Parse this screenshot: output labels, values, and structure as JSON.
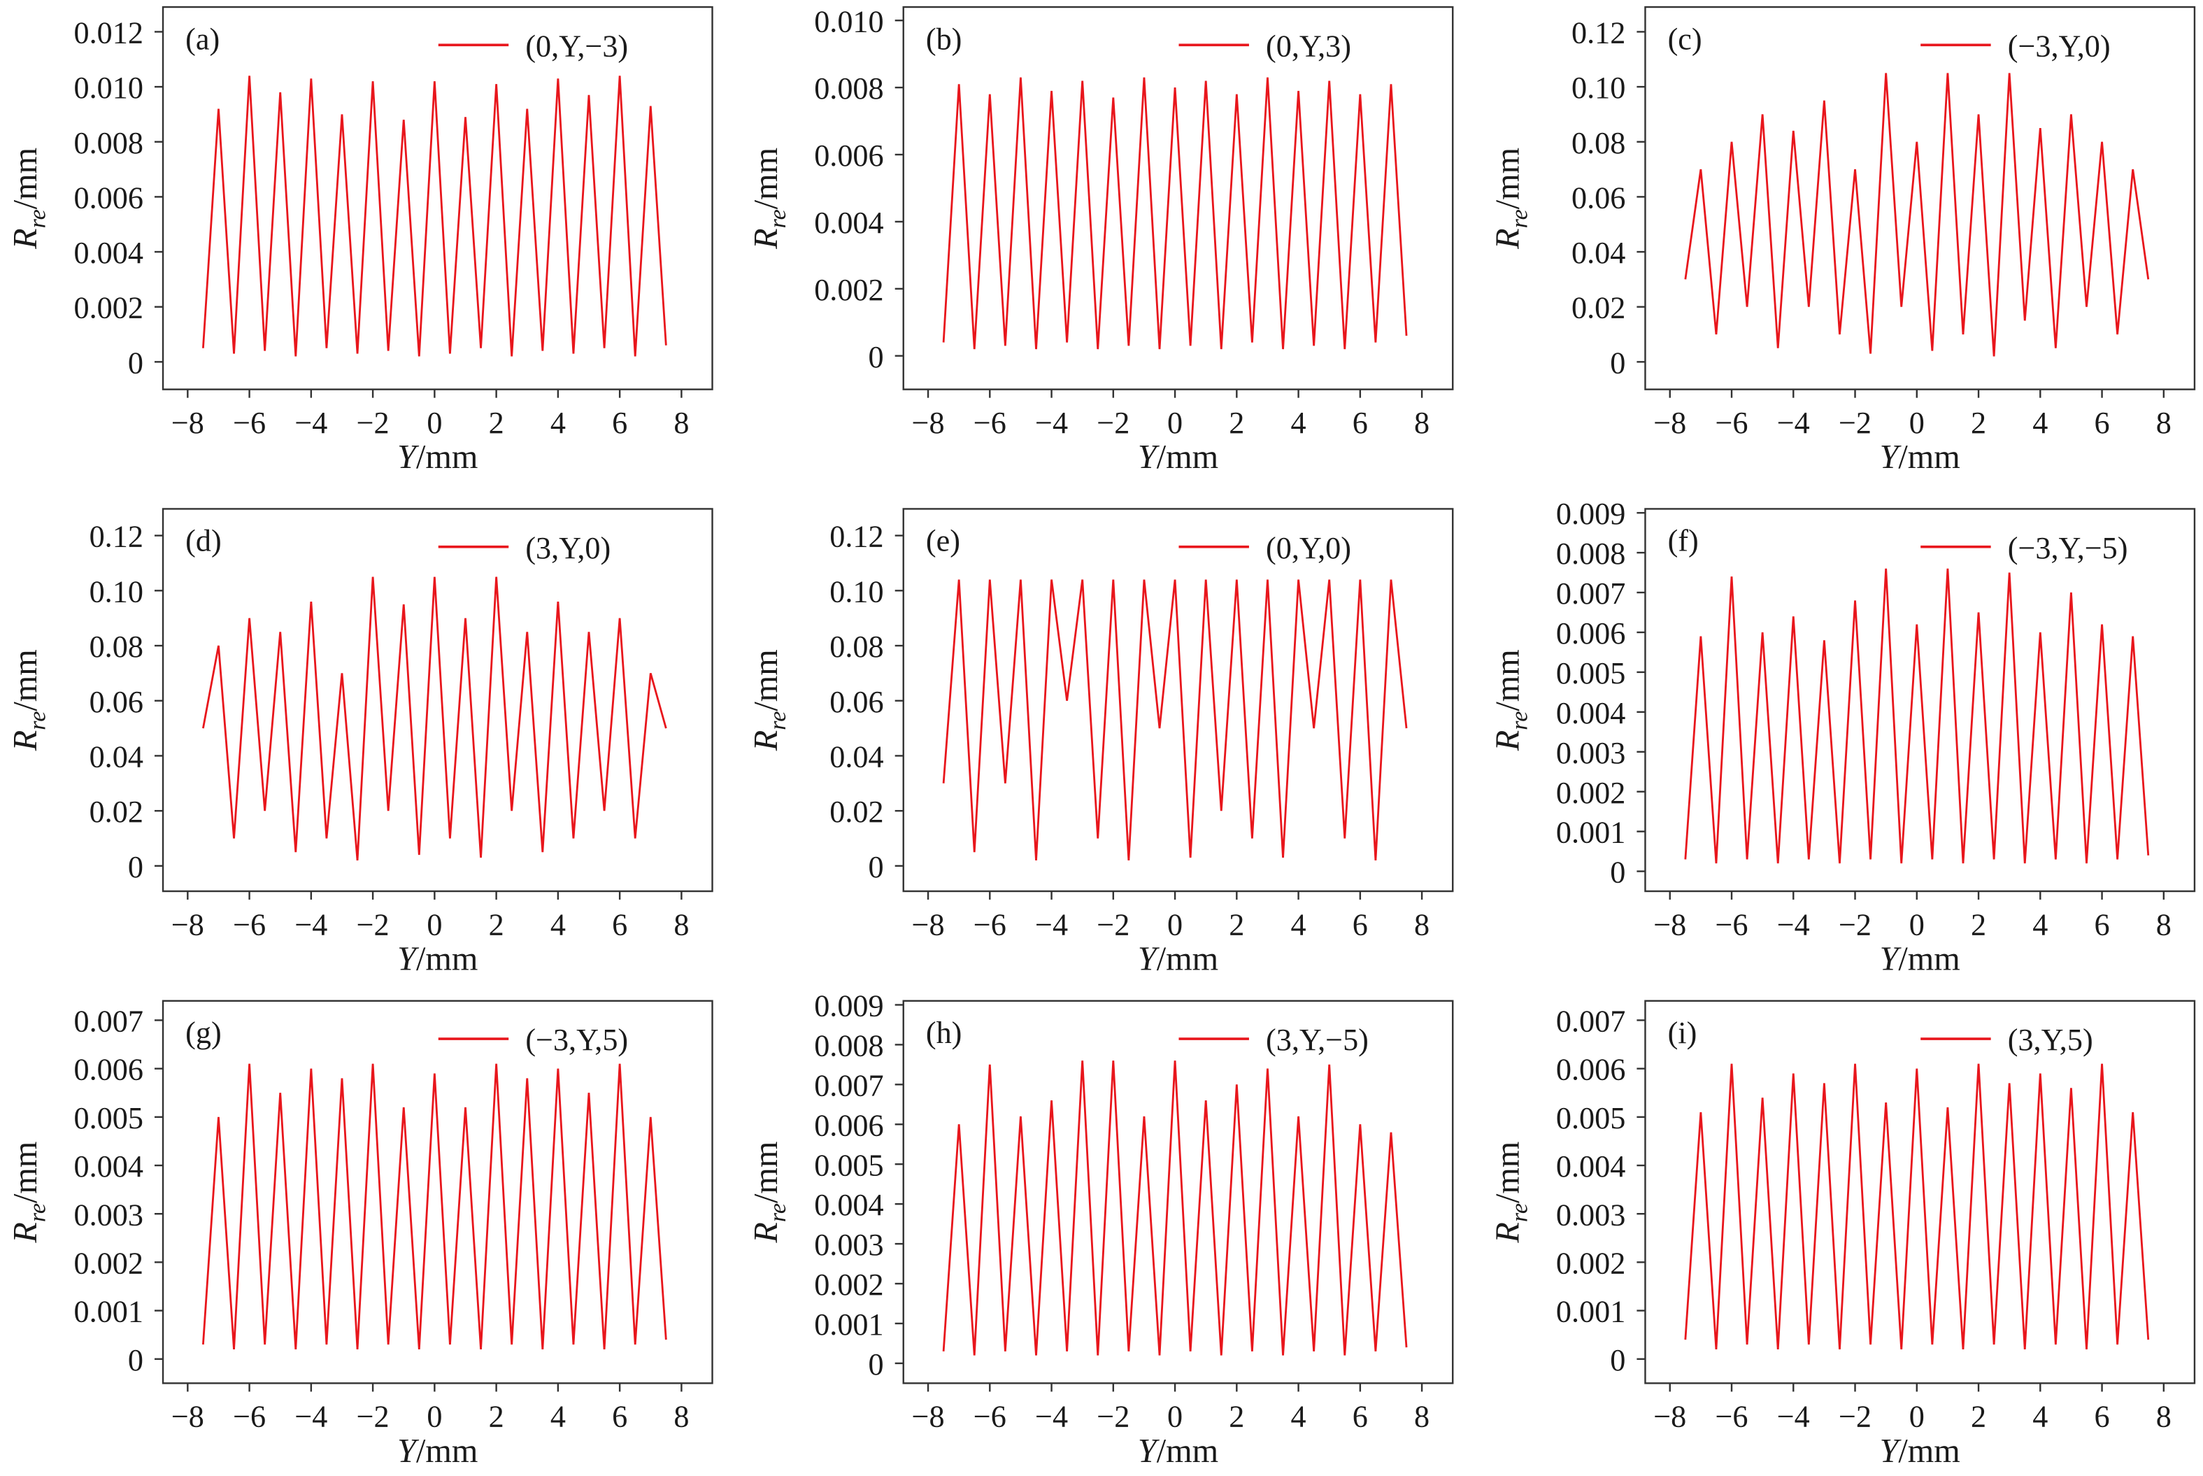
{
  "chart_data": [
    {
      "type": "line",
      "panel_label": "(a)",
      "legend": "upper right",
      "x": [
        -7.5,
        -7,
        -6.5,
        -6,
        -5.5,
        -5,
        -4.5,
        -4,
        -3.5,
        -3,
        -2.5,
        -2,
        -1.5,
        -1,
        -0.5,
        0,
        0.5,
        1,
        1.5,
        2,
        2.5,
        3,
        3.5,
        4,
        4.5,
        5,
        5.5,
        6,
        6.5,
        7,
        7.5
      ],
      "series": [
        {
          "name": "(0,Y,−3)",
          "color": "#e8161c",
          "values": [
            0.0005,
            0.0092,
            0.0003,
            0.0104,
            0.0004,
            0.0098,
            0.0002,
            0.0103,
            0.0005,
            0.009,
            0.0003,
            0.0102,
            0.0004,
            0.0088,
            0.0002,
            0.0102,
            0.0003,
            0.0089,
            0.0005,
            0.0101,
            0.0002,
            0.0092,
            0.0004,
            0.0103,
            0.0003,
            0.0097,
            0.0005,
            0.0104,
            0.0002,
            0.0093,
            0.0006
          ]
        }
      ],
      "xlim": [
        -8.8,
        9
      ],
      "ylim": [
        -0.001,
        0.0129
      ],
      "xticks": [
        {
          "value": -8,
          "label": "−8"
        },
        {
          "value": -6,
          "label": "−6"
        },
        {
          "value": -4,
          "label": "−4"
        },
        {
          "value": -2,
          "label": "−2"
        },
        0,
        2,
        4,
        6,
        8
      ],
      "yticks": [
        0,
        0.002,
        0.004,
        0.006,
        0.008,
        {
          "value": 0.01,
          "label": "0.010"
        },
        0.012
      ],
      "x_label": {
        "symbol": "Y",
        "unit": "/mm"
      },
      "y_label": {
        "symbol": "R",
        "subscript": "re",
        "unit": "/mm"
      }
    },
    {
      "type": "line",
      "panel_label": "(b)",
      "legend": "upper right",
      "x": [
        -7.5,
        -7,
        -6.5,
        -6,
        -5.5,
        -5,
        -4.5,
        -4,
        -3.5,
        -3,
        -2.5,
        -2,
        -1.5,
        -1,
        -0.5,
        0,
        0.5,
        1,
        1.5,
        2,
        2.5,
        3,
        3.5,
        4,
        4.5,
        5,
        5.5,
        6,
        6.5,
        7,
        7.5
      ],
      "series": [
        {
          "name": "(0,Y,3)",
          "color": "#e8161c",
          "values": [
            0.0004,
            0.0081,
            0.0002,
            0.0078,
            0.0003,
            0.0083,
            0.0002,
            0.0079,
            0.0004,
            0.0082,
            0.0002,
            0.0077,
            0.0003,
            0.0083,
            0.0002,
            0.008,
            0.0003,
            0.0082,
            0.0002,
            0.0078,
            0.0004,
            0.0083,
            0.0002,
            0.0079,
            0.0003,
            0.0082,
            0.0002,
            0.0078,
            0.0004,
            0.0081,
            0.0006
          ]
        }
      ],
      "xlim": [
        -8.8,
        9
      ],
      "ylim": [
        -0.001,
        0.0104
      ],
      "xticks": [
        {
          "value": -8,
          "label": "−8"
        },
        {
          "value": -6,
          "label": "−6"
        },
        {
          "value": -4,
          "label": "−4"
        },
        {
          "value": -2,
          "label": "−2"
        },
        0,
        2,
        4,
        6,
        8
      ],
      "yticks": [
        0,
        0.002,
        0.004,
        0.006,
        0.008,
        {
          "value": 0.01,
          "label": "0.010"
        }
      ],
      "x_label": {
        "symbol": "Y",
        "unit": "/mm"
      },
      "y_label": {
        "symbol": "R",
        "subscript": "re",
        "unit": "/mm"
      }
    },
    {
      "type": "line",
      "panel_label": "(c)",
      "legend": "upper right",
      "x": [
        -7.5,
        -7,
        -6.5,
        -6,
        -5.5,
        -5,
        -4.5,
        -4,
        -3.5,
        -3,
        -2.5,
        -2,
        -1.5,
        -1,
        -0.5,
        0,
        0.5,
        1,
        1.5,
        2,
        2.5,
        3,
        3.5,
        4,
        4.5,
        5,
        5.5,
        6,
        6.5,
        7,
        7.5
      ],
      "series": [
        {
          "name": "(−3,Y,0)",
          "color": "#e8161c",
          "values": [
            0.03,
            0.07,
            0.01,
            0.08,
            0.02,
            0.09,
            0.005,
            0.084,
            0.02,
            0.095,
            0.01,
            0.07,
            0.003,
            0.105,
            0.02,
            0.08,
            0.004,
            0.105,
            0.01,
            0.09,
            0.002,
            0.105,
            0.015,
            0.085,
            0.005,
            0.09,
            0.02,
            0.08,
            0.01,
            0.07,
            0.03
          ]
        }
      ],
      "xlim": [
        -8.8,
        9
      ],
      "ylim": [
        -0.01,
        0.129
      ],
      "xticks": [
        {
          "value": -8,
          "label": "−8"
        },
        {
          "value": -6,
          "label": "−6"
        },
        {
          "value": -4,
          "label": "−4"
        },
        {
          "value": -2,
          "label": "−2"
        },
        0,
        2,
        4,
        6,
        8
      ],
      "yticks": [
        0,
        0.02,
        0.04,
        0.06,
        0.08,
        {
          "value": 0.1,
          "label": "0.10"
        },
        0.12
      ],
      "x_label": {
        "symbol": "Y",
        "unit": "/mm"
      },
      "y_label": {
        "symbol": "R",
        "subscript": "re",
        "unit": "/mm"
      }
    },
    {
      "type": "line",
      "panel_label": "(d)",
      "legend": "upper right",
      "x": [
        -7.5,
        -7,
        -6.5,
        -6,
        -5.5,
        -5,
        -4.5,
        -4,
        -3.5,
        -3,
        -2.5,
        -2,
        -1.5,
        -1,
        -0.5,
        0,
        0.5,
        1,
        1.5,
        2,
        2.5,
        3,
        3.5,
        4,
        4.5,
        5,
        5.5,
        6,
        6.5,
        7,
        7.5
      ],
      "series": [
        {
          "name": "(3,Y,0)",
          "color": "#e8161c",
          "values": [
            0.05,
            0.08,
            0.01,
            0.09,
            0.02,
            0.085,
            0.005,
            0.096,
            0.01,
            0.07,
            0.002,
            0.105,
            0.02,
            0.095,
            0.004,
            0.105,
            0.01,
            0.09,
            0.003,
            0.105,
            0.02,
            0.085,
            0.005,
            0.096,
            0.01,
            0.085,
            0.02,
            0.09,
            0.01,
            0.07,
            0.05
          ]
        }
      ],
      "xlim": [
        -8.8,
        9
      ],
      "ylim": [
        -0.0092,
        0.1297
      ],
      "xticks": [
        {
          "value": -8,
          "label": "−8"
        },
        {
          "value": -6,
          "label": "−6"
        },
        {
          "value": -4,
          "label": "−4"
        },
        {
          "value": -2,
          "label": "−2"
        },
        0,
        2,
        4,
        6,
        8
      ],
      "yticks": [
        0,
        0.02,
        0.04,
        0.06,
        0.08,
        {
          "value": 0.1,
          "label": "0.10"
        },
        0.12
      ],
      "x_label": {
        "symbol": "Y",
        "unit": "/mm"
      },
      "y_label": {
        "symbol": "R",
        "subscript": "re",
        "unit": "/mm"
      }
    },
    {
      "type": "line",
      "panel_label": "(e)",
      "legend": "upper right",
      "x": [
        -7.5,
        -7,
        -6.5,
        -6,
        -5.5,
        -5,
        -4.5,
        -4,
        -3.5,
        -3,
        -2.5,
        -2,
        -1.5,
        -1,
        -0.5,
        0,
        0.5,
        1,
        1.5,
        2,
        2.5,
        3,
        3.5,
        4,
        4.5,
        5,
        5.5,
        6,
        6.5,
        7,
        7.5
      ],
      "series": [
        {
          "name": "(0,Y,0)",
          "color": "#e8161c",
          "values": [
            0.03,
            0.104,
            0.005,
            0.104,
            0.03,
            0.104,
            0.002,
            0.104,
            0.06,
            0.104,
            0.01,
            0.104,
            0.002,
            0.104,
            0.05,
            0.104,
            0.003,
            0.104,
            0.02,
            0.104,
            0.01,
            0.104,
            0.003,
            0.104,
            0.05,
            0.104,
            0.01,
            0.104,
            0.002,
            0.104,
            0.05
          ]
        }
      ],
      "xlim": [
        -8.8,
        9
      ],
      "ylim": [
        -0.0092,
        0.1297
      ],
      "xticks": [
        {
          "value": -8,
          "label": "−8"
        },
        {
          "value": -6,
          "label": "−6"
        },
        {
          "value": -4,
          "label": "−4"
        },
        {
          "value": -2,
          "label": "−2"
        },
        0,
        2,
        4,
        6,
        8
      ],
      "yticks": [
        0,
        0.02,
        0.04,
        0.06,
        0.08,
        {
          "value": 0.1,
          "label": "0.10"
        },
        0.12
      ],
      "x_label": {
        "symbol": "Y",
        "unit": "/mm"
      },
      "y_label": {
        "symbol": "R",
        "subscript": "re",
        "unit": "/mm"
      }
    },
    {
      "type": "line",
      "panel_label": "(f)",
      "legend": "upper right",
      "x": [
        -7.5,
        -7,
        -6.5,
        -6,
        -5.5,
        -5,
        -4.5,
        -4,
        -3.5,
        -3,
        -2.5,
        -2,
        -1.5,
        -1,
        -0.5,
        0,
        0.5,
        1,
        1.5,
        2,
        2.5,
        3,
        3.5,
        4,
        4.5,
        5,
        5.5,
        6,
        6.5,
        7,
        7.5
      ],
      "series": [
        {
          "name": "(−3,Y,−5)",
          "color": "#e8161c",
          "values": [
            0.0003,
            0.0059,
            0.0002,
            0.0074,
            0.0003,
            0.006,
            0.0002,
            0.0064,
            0.0003,
            0.0058,
            0.0002,
            0.0068,
            0.0003,
            0.0076,
            0.0002,
            0.0062,
            0.0003,
            0.0076,
            0.0002,
            0.0065,
            0.0003,
            0.0075,
            0.0002,
            0.006,
            0.0003,
            0.007,
            0.0002,
            0.0062,
            0.0003,
            0.0059,
            0.0004
          ]
        }
      ],
      "xlim": [
        -8.8,
        9
      ],
      "ylim": [
        -0.0005,
        0.0091
      ],
      "xticks": [
        {
          "value": -8,
          "label": "−8"
        },
        {
          "value": -6,
          "label": "−6"
        },
        {
          "value": -4,
          "label": "−4"
        },
        {
          "value": -2,
          "label": "−2"
        },
        0,
        2,
        4,
        6,
        8
      ],
      "yticks": [
        0,
        0.001,
        0.002,
        0.003,
        0.004,
        0.005,
        0.006,
        0.007,
        0.008,
        0.009
      ],
      "x_label": {
        "symbol": "Y",
        "unit": "/mm"
      },
      "y_label": {
        "symbol": "R",
        "subscript": "re",
        "unit": "/mm"
      }
    },
    {
      "type": "line",
      "panel_label": "(g)",
      "legend": "upper right",
      "x": [
        -7.5,
        -7,
        -6.5,
        -6,
        -5.5,
        -5,
        -4.5,
        -4,
        -3.5,
        -3,
        -2.5,
        -2,
        -1.5,
        -1,
        -0.5,
        0,
        0.5,
        1,
        1.5,
        2,
        2.5,
        3,
        3.5,
        4,
        4.5,
        5,
        5.5,
        6,
        6.5,
        7,
        7.5
      ],
      "series": [
        {
          "name": "(−3,Y,5)",
          "color": "#e8161c",
          "values": [
            0.0003,
            0.005,
            0.0002,
            0.0061,
            0.0003,
            0.0055,
            0.0002,
            0.006,
            0.0003,
            0.0058,
            0.0002,
            0.0061,
            0.0003,
            0.0052,
            0.0002,
            0.0059,
            0.0003,
            0.0052,
            0.0002,
            0.0061,
            0.0003,
            0.0058,
            0.0002,
            0.006,
            0.0003,
            0.0055,
            0.0002,
            0.0061,
            0.0003,
            0.005,
            0.0004
          ]
        }
      ],
      "xlim": [
        -8.8,
        9
      ],
      "ylim": [
        -0.0005,
        0.0074
      ],
      "xticks": [
        {
          "value": -8,
          "label": "−8"
        },
        {
          "value": -6,
          "label": "−6"
        },
        {
          "value": -4,
          "label": "−4"
        },
        {
          "value": -2,
          "label": "−2"
        },
        0,
        2,
        4,
        6,
        8
      ],
      "yticks": [
        0,
        0.001,
        0.002,
        0.003,
        0.004,
        0.005,
        0.006,
        0.007
      ],
      "x_label": {
        "symbol": "Y",
        "unit": "/mm"
      },
      "y_label": {
        "symbol": "R",
        "subscript": "re",
        "unit": "/mm"
      }
    },
    {
      "type": "line",
      "panel_label": "(h)",
      "legend": "upper right",
      "x": [
        -7.5,
        -7,
        -6.5,
        -6,
        -5.5,
        -5,
        -4.5,
        -4,
        -3.5,
        -3,
        -2.5,
        -2,
        -1.5,
        -1,
        -0.5,
        0,
        0.5,
        1,
        1.5,
        2,
        2.5,
        3,
        3.5,
        4,
        4.5,
        5,
        5.5,
        6,
        6.5,
        7,
        7.5
      ],
      "series": [
        {
          "name": "(3,Y,−5)",
          "color": "#e8161c",
          "values": [
            0.0003,
            0.006,
            0.0002,
            0.0075,
            0.0003,
            0.0062,
            0.0002,
            0.0066,
            0.0003,
            0.0076,
            0.0002,
            0.0076,
            0.0003,
            0.0062,
            0.0002,
            0.0076,
            0.0003,
            0.0066,
            0.0002,
            0.007,
            0.0003,
            0.0074,
            0.0002,
            0.0062,
            0.0003,
            0.0075,
            0.0002,
            0.006,
            0.0003,
            0.0058,
            0.0004
          ]
        }
      ],
      "xlim": [
        -8.8,
        9
      ],
      "ylim": [
        -0.0005,
        0.0091
      ],
      "xticks": [
        {
          "value": -8,
          "label": "−8"
        },
        {
          "value": -6,
          "label": "−6"
        },
        {
          "value": -4,
          "label": "−4"
        },
        {
          "value": -2,
          "label": "−2"
        },
        0,
        2,
        4,
        6,
        8
      ],
      "yticks": [
        0,
        0.001,
        0.002,
        0.003,
        0.004,
        0.005,
        0.006,
        0.007,
        0.008,
        0.009
      ],
      "x_label": {
        "symbol": "Y",
        "unit": "/mm"
      },
      "y_label": {
        "symbol": "R",
        "subscript": "re",
        "unit": "/mm"
      }
    },
    {
      "type": "line",
      "panel_label": "(i)",
      "legend": "upper right",
      "x": [
        -7.5,
        -7,
        -6.5,
        -6,
        -5.5,
        -5,
        -4.5,
        -4,
        -3.5,
        -3,
        -2.5,
        -2,
        -1.5,
        -1,
        -0.5,
        0,
        0.5,
        1,
        1.5,
        2,
        2.5,
        3,
        3.5,
        4,
        4.5,
        5,
        5.5,
        6,
        6.5,
        7,
        7.5
      ],
      "series": [
        {
          "name": "(3,Y,5)",
          "color": "#e8161c",
          "values": [
            0.0004,
            0.0051,
            0.0002,
            0.0061,
            0.0003,
            0.0054,
            0.0002,
            0.0059,
            0.0003,
            0.0057,
            0.0002,
            0.0061,
            0.0003,
            0.0053,
            0.0002,
            0.006,
            0.0003,
            0.0052,
            0.0002,
            0.0061,
            0.0003,
            0.0057,
            0.0002,
            0.0059,
            0.0003,
            0.0056,
            0.0002,
            0.0061,
            0.0003,
            0.0051,
            0.0004
          ]
        }
      ],
      "xlim": [
        -8.8,
        9
      ],
      "ylim": [
        -0.0005,
        0.0074
      ],
      "xticks": [
        {
          "value": -8,
          "label": "−8"
        },
        {
          "value": -6,
          "label": "−6"
        },
        {
          "value": -4,
          "label": "−4"
        },
        {
          "value": -2,
          "label": "−2"
        },
        0,
        2,
        4,
        6,
        8
      ],
      "yticks": [
        0,
        0.001,
        0.002,
        0.003,
        0.004,
        0.005,
        0.006,
        0.007
      ],
      "x_label": {
        "symbol": "Y",
        "unit": "/mm"
      },
      "y_label": {
        "symbol": "R",
        "subscript": "re",
        "unit": "/mm"
      }
    }
  ]
}
